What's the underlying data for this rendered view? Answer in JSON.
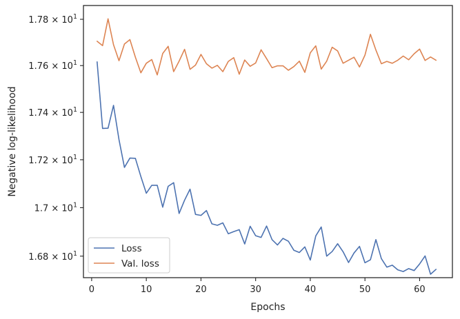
{
  "chart_data": {
    "type": "line",
    "xlabel": "Epochs",
    "ylabel": "Negative log-likelihood",
    "xlim": [
      -1.5,
      66
    ],
    "ylim": [
      16.712,
      17.86
    ],
    "yscale": "log",
    "grid": false,
    "legend_position": "lower-left",
    "xticks": [
      0,
      10,
      20,
      30,
      40,
      50,
      60
    ],
    "xtick_labels": [
      "0",
      "10",
      "20",
      "30",
      "40",
      "50",
      "60"
    ],
    "yticks": [
      16.8,
      17.0,
      17.2,
      17.4,
      17.6,
      17.8
    ],
    "ytick_labels": [
      {
        "mantissa": "1.68",
        "base": "10",
        "exp": "1"
      },
      {
        "mantissa": "1.7",
        "base": "10",
        "exp": "1"
      },
      {
        "mantissa": "1.72",
        "base": "10",
        "exp": "1"
      },
      {
        "mantissa": "1.74",
        "base": "10",
        "exp": "1"
      },
      {
        "mantissa": "1.76",
        "base": "10",
        "exp": "1"
      },
      {
        "mantissa": "1.78",
        "base": "10",
        "exp": "1"
      }
    ],
    "x": [
      1,
      2,
      3,
      4,
      5,
      6,
      7,
      8,
      9,
      10,
      11,
      12,
      13,
      14,
      15,
      16,
      17,
      18,
      19,
      20,
      21,
      22,
      23,
      24,
      25,
      26,
      27,
      28,
      29,
      30,
      31,
      32,
      33,
      34,
      35,
      36,
      37,
      38,
      39,
      40,
      41,
      42,
      43,
      44,
      45,
      46,
      47,
      48,
      49,
      50,
      51,
      52,
      53,
      54,
      55,
      56,
      57,
      58,
      59,
      60,
      61,
      62,
      63
    ],
    "series": [
      {
        "name": "Loss",
        "color": "#4c72b0",
        "values": [
          17.616,
          17.332,
          17.333,
          17.43,
          17.285,
          17.168,
          17.207,
          17.206,
          17.13,
          17.06,
          17.093,
          17.093,
          17.002,
          17.089,
          17.104,
          16.976,
          17.031,
          17.077,
          16.972,
          16.968,
          16.988,
          16.933,
          16.927,
          16.937,
          16.892,
          16.901,
          16.909,
          16.85,
          16.923,
          16.884,
          16.877,
          16.924,
          16.868,
          16.846,
          16.873,
          16.861,
          16.824,
          16.815,
          16.838,
          16.784,
          16.883,
          16.92,
          16.8,
          16.819,
          16.851,
          16.818,
          16.774,
          16.813,
          16.84,
          16.773,
          16.785,
          16.868,
          16.79,
          16.755,
          16.763,
          16.744,
          16.737,
          16.749,
          16.741,
          16.768,
          16.801,
          16.726,
          16.746
        ]
      },
      {
        "name": "Val. loss",
        "color": "#dd8452",
        "values": [
          17.705,
          17.686,
          17.802,
          17.69,
          17.621,
          17.693,
          17.712,
          17.636,
          17.569,
          17.61,
          17.626,
          17.56,
          17.652,
          17.683,
          17.574,
          17.619,
          17.67,
          17.584,
          17.602,
          17.648,
          17.608,
          17.589,
          17.601,
          17.574,
          17.618,
          17.634,
          17.563,
          17.624,
          17.597,
          17.611,
          17.668,
          17.63,
          17.591,
          17.599,
          17.599,
          17.58,
          17.596,
          17.619,
          17.571,
          17.655,
          17.685,
          17.585,
          17.619,
          17.679,
          17.663,
          17.61,
          17.623,
          17.636,
          17.594,
          17.645,
          17.735,
          17.667,
          17.608,
          17.618,
          17.61,
          17.623,
          17.641,
          17.625,
          17.651,
          17.671,
          17.622,
          17.637,
          17.623
        ]
      }
    ]
  }
}
